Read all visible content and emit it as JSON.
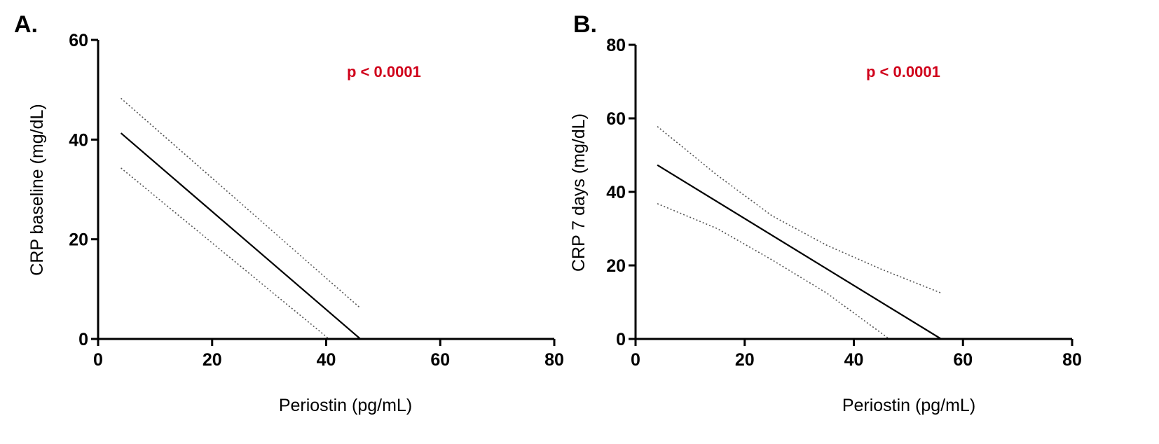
{
  "chart_data": [
    {
      "panel_label": "A.",
      "type": "line",
      "xlabel": "Periostin (pg/mL)",
      "ylabel": "CRP baseline (mg/dL)",
      "xlim": [
        0,
        80
      ],
      "ylim": [
        0,
        60
      ],
      "xticks": [
        0,
        20,
        40,
        60,
        80
      ],
      "yticks": [
        0,
        20,
        40,
        60
      ],
      "annotation": "p < 0.0001",
      "annotation_color": "#d0021b",
      "grid": false,
      "series": [
        {
          "style": "solid",
          "x": [
            4,
            46
          ],
          "y": [
            41.3,
            0
          ]
        },
        {
          "style": "dotted",
          "x": [
            4,
            46
          ],
          "y": [
            48.3,
            6.2
          ]
        },
        {
          "style": "dotted",
          "x": [
            4,
            40.5
          ],
          "y": [
            34.3,
            0
          ]
        }
      ]
    },
    {
      "panel_label": "B.",
      "type": "line",
      "xlabel": "Periostin (pg/mL)",
      "ylabel": "CRP 7 days (mg/dL)",
      "xlim": [
        0,
        80
      ],
      "ylim": [
        0,
        80
      ],
      "xticks": [
        0,
        20,
        40,
        60,
        80
      ],
      "yticks": [
        0,
        20,
        40,
        60,
        80
      ],
      "annotation": "p < 0.0001",
      "annotation_color": "#d0021b",
      "grid": false,
      "series": [
        {
          "style": "solid",
          "x": [
            4,
            56
          ],
          "y": [
            47.3,
            0
          ]
        },
        {
          "style": "dotted",
          "x": [
            4,
            15,
            25,
            35,
            45,
            56
          ],
          "y": [
            57.8,
            44.5,
            33.5,
            25.5,
            19.0,
            12.5
          ]
        },
        {
          "style": "dotted",
          "x": [
            4,
            15,
            25,
            35,
            46.5
          ],
          "y": [
            36.8,
            30.0,
            21.5,
            12.5,
            0
          ]
        }
      ]
    }
  ]
}
